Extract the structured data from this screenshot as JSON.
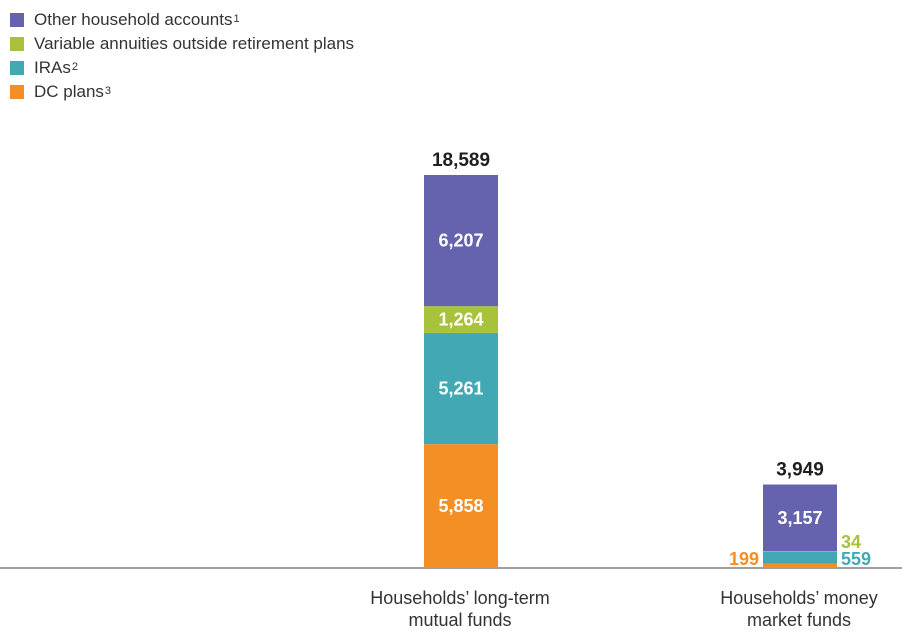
{
  "colors": {
    "other": "#6563ad",
    "variable": "#a8c23b",
    "ira": "#42a9b4",
    "dc": "#f38f24",
    "total": "#1f1f1f"
  },
  "legend": [
    {
      "label": "Other household accounts",
      "sup": "1",
      "color": "#6563ad"
    },
    {
      "label": "Variable annuities outside retirement plans",
      "sup": "",
      "color": "#a8c23b"
    },
    {
      "label": "IRAs",
      "sup": "2",
      "color": "#42a9b4"
    },
    {
      "label": "DC plans",
      "sup": "3",
      "color": "#f38f24"
    }
  ],
  "chart_data": {
    "type": "bar",
    "stacked": true,
    "categories": [
      "Households’ long-term mutual funds",
      "Households’ money market funds"
    ],
    "series": [
      {
        "name": "DC plans",
        "values": [
          5858,
          199
        ]
      },
      {
        "name": "IRAs",
        "values": [
          5261,
          559
        ]
      },
      {
        "name": "Variable annuities outside retirement plans",
        "values": [
          1264,
          34
        ]
      },
      {
        "name": "Other household accounts",
        "values": [
          6207,
          3157
        ]
      }
    ],
    "totals": [
      18589,
      3949
    ],
    "value_labels": [
      [
        "5,858",
        "5,261",
        "1,264",
        "6,207"
      ],
      [
        "199",
        "559",
        "34",
        "3,157"
      ]
    ],
    "total_labels": [
      "18,589",
      "3,949"
    ],
    "category_labels": [
      [
        "Households’ long-term",
        "mutual funds"
      ],
      [
        "Households’ money",
        "market funds"
      ]
    ]
  }
}
